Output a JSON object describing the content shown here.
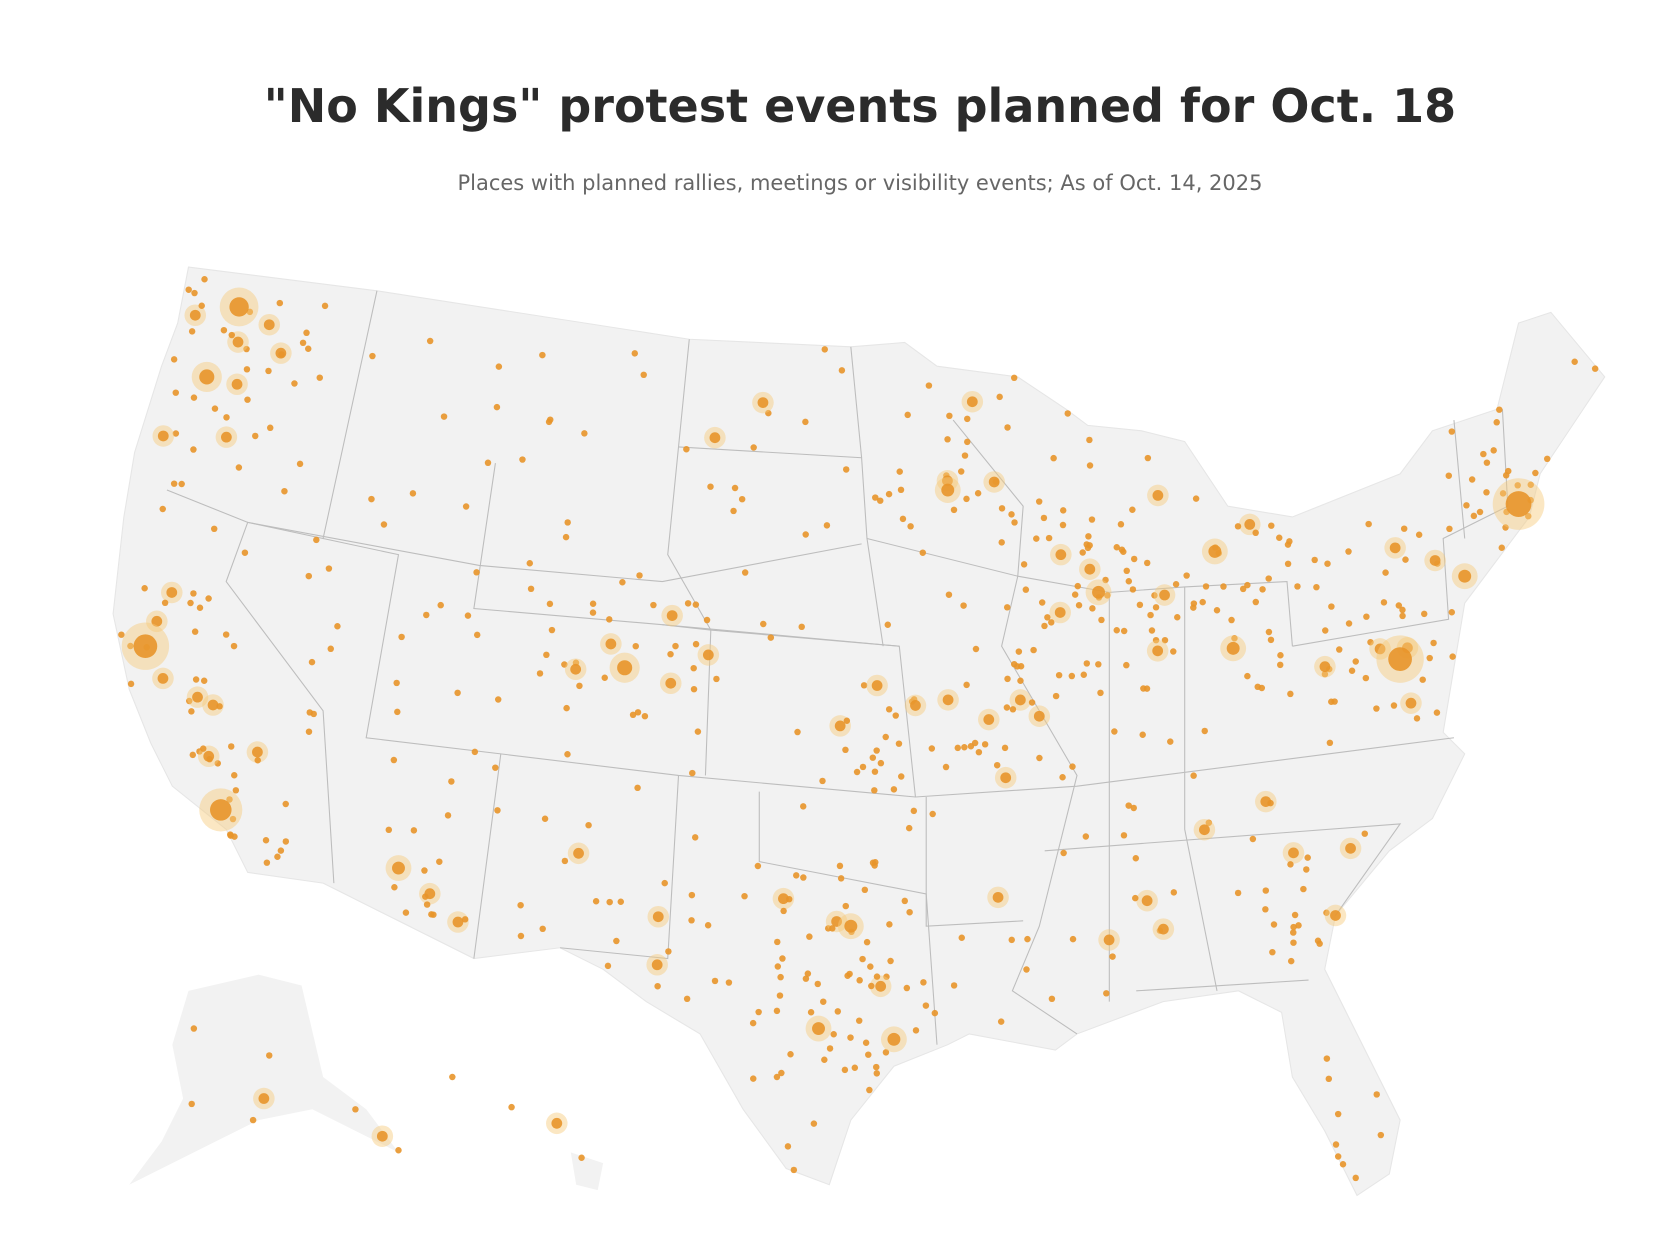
{
  "header": {
    "title": "\"No Kings\" protest events planned for Oct. 18",
    "subtitle": "Places with planned rallies, meetings or visibility events; As of Oct. 14, 2025"
  }
}
